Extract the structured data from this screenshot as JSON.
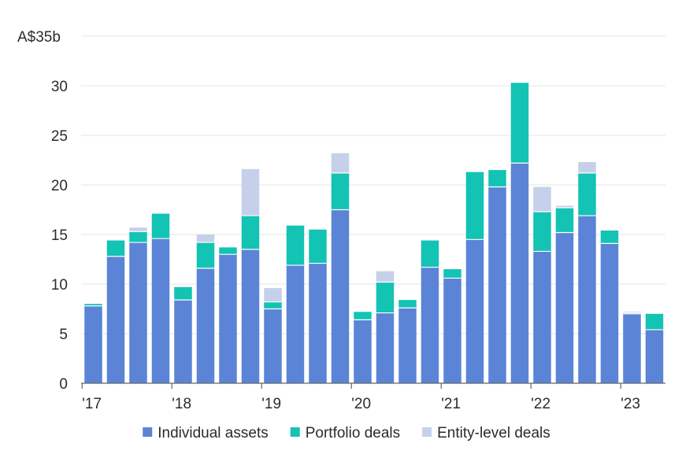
{
  "chart_data": {
    "type": "bar",
    "stacked": true,
    "title": "",
    "xlabel": "",
    "ylabel": "",
    "ylim": [
      0,
      35
    ],
    "y_ticks": [
      {
        "value": 0,
        "label": "0"
      },
      {
        "value": 5,
        "label": "5"
      },
      {
        "value": 10,
        "label": "10"
      },
      {
        "value": 15,
        "label": "15"
      },
      {
        "value": 20,
        "label": "20"
      },
      {
        "value": 25,
        "label": "25"
      },
      {
        "value": 30,
        "label": "30"
      },
      {
        "value": 35,
        "label": "A$35b"
      }
    ],
    "x_ticks": [
      {
        "index": 0,
        "label": "'17"
      },
      {
        "index": 4,
        "label": "'18"
      },
      {
        "index": 8,
        "label": "'19"
      },
      {
        "index": 12,
        "label": "'20"
      },
      {
        "index": 16,
        "label": "'21"
      },
      {
        "index": 20,
        "label": "'22"
      },
      {
        "index": 24,
        "label": "'23"
      }
    ],
    "categories": [
      "Q1 2017",
      "Q2 2017",
      "Q3 2017",
      "Q4 2017",
      "Q1 2018",
      "Q2 2018",
      "Q3 2018",
      "Q4 2018",
      "Q1 2019",
      "Q2 2019",
      "Q3 2019",
      "Q4 2019",
      "Q1 2020",
      "Q2 2020",
      "Q3 2020",
      "Q4 2020",
      "Q1 2021",
      "Q2 2021",
      "Q3 2021",
      "Q4 2021",
      "Q1 2022",
      "Q2 2022",
      "Q3 2022",
      "Q4 2022",
      "Q1 2023",
      "Q2 2023"
    ],
    "gridlines": true,
    "legend_position": "bottom",
    "series": [
      {
        "name": "Individual assets",
        "color": "#5b84d6",
        "values": [
          7.8,
          12.8,
          14.2,
          14.6,
          8.4,
          11.6,
          13.0,
          13.5,
          7.5,
          11.9,
          12.1,
          17.5,
          6.4,
          7.1,
          7.6,
          11.7,
          10.6,
          14.5,
          19.8,
          22.2,
          13.3,
          15.2,
          16.9,
          14.1,
          7.0,
          5.4
        ]
      },
      {
        "name": "Portfolio deals",
        "color": "#13c3b3",
        "values": [
          0.2,
          1.6,
          1.1,
          2.5,
          1.3,
          2.6,
          0.7,
          3.4,
          0.7,
          4.0,
          3.4,
          3.7,
          0.8,
          3.1,
          0.8,
          2.7,
          0.9,
          6.8,
          1.7,
          8.1,
          4.0,
          2.5,
          4.3,
          1.3,
          0.1,
          1.6
        ]
      },
      {
        "name": "Entity-level deals",
        "color": "#c6d0ea",
        "values": [
          0.0,
          0.0,
          0.4,
          0.0,
          0.0,
          0.8,
          0.0,
          4.7,
          1.4,
          0.0,
          0.0,
          2.0,
          0.0,
          1.1,
          0.0,
          0.0,
          0.0,
          0.0,
          0.0,
          0.0,
          2.5,
          0.2,
          1.1,
          0.0,
          0.1,
          0.0
        ]
      }
    ]
  }
}
